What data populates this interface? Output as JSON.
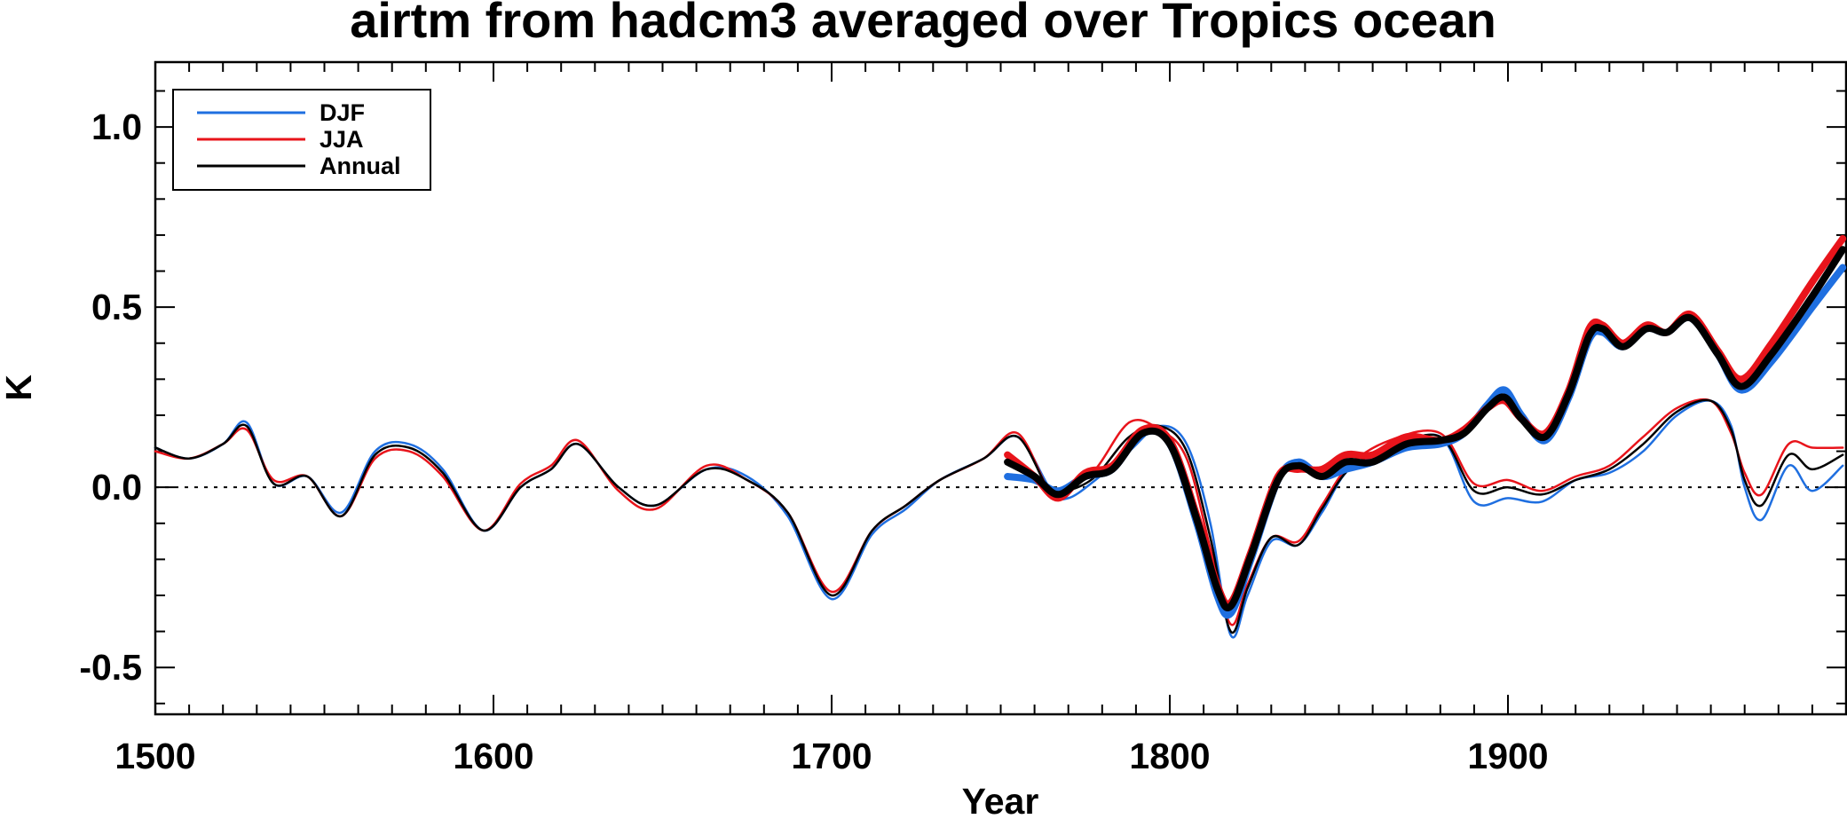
{
  "chart_data": {
    "type": "line",
    "title": "airtm from hadcm3 averaged over Tropics ocean",
    "xlabel": "Year",
    "ylabel": "K",
    "xlim": [
      1500,
      2000
    ],
    "ylim": [
      -0.63,
      1.18
    ],
    "x_ticks": [
      1500,
      1600,
      1700,
      1800,
      1900
    ],
    "x_tick_labels": [
      "1500",
      "1600",
      "1700",
      "1800",
      "1900"
    ],
    "y_ticks": [
      -0.5,
      0.0,
      0.5,
      1.0
    ],
    "y_tick_labels": [
      "-0.5",
      "0.0",
      "0.5",
      "1.0"
    ],
    "zero_line": "dotted",
    "grid": false,
    "legend": {
      "placement": "top-left",
      "entries": [
        "DJF",
        "JJA",
        "Annual"
      ]
    },
    "colors": {
      "DJF": "#1f6fe0",
      "JJA": "#e8141b",
      "Annual": "#000000"
    },
    "series": [
      {
        "name": "DJF",
        "style": "thin",
        "x": [
          1500,
          1510,
          1520,
          1527,
          1535,
          1545,
          1555,
          1565,
          1575,
          1585,
          1597,
          1608,
          1617,
          1625,
          1637,
          1648,
          1663,
          1675,
          1687,
          1700,
          1712,
          1722,
          1732,
          1745,
          1755,
          1765,
          1770,
          1778,
          1788,
          1797,
          1805,
          1812,
          1818,
          1823,
          1830,
          1838,
          1845,
          1853,
          1865,
          1880,
          1890,
          1900,
          1910,
          1920,
          1930,
          1940,
          1950,
          1960,
          1966,
          1970,
          1975,
          1983,
          1990,
          1999
        ],
        "y": [
          0.11,
          0.08,
          0.12,
          0.18,
          0.01,
          0.03,
          -0.07,
          0.1,
          0.12,
          0.05,
          -0.12,
          0.0,
          0.05,
          0.12,
          0.0,
          -0.05,
          0.05,
          0.03,
          -0.08,
          -0.31,
          -0.13,
          -0.06,
          0.02,
          0.08,
          0.14,
          -0.01,
          -0.03,
          0.02,
          0.1,
          0.17,
          0.12,
          -0.1,
          -0.41,
          -0.3,
          -0.15,
          -0.16,
          -0.07,
          0.05,
          0.1,
          0.14,
          -0.04,
          -0.03,
          -0.04,
          0.02,
          0.04,
          0.1,
          0.2,
          0.24,
          0.17,
          0.0,
          -0.09,
          0.06,
          -0.01,
          0.06
        ]
      },
      {
        "name": "JJA",
        "style": "thin",
        "x": [
          1500,
          1510,
          1520,
          1527,
          1535,
          1545,
          1555,
          1565,
          1575,
          1585,
          1597,
          1608,
          1617,
          1625,
          1637,
          1648,
          1663,
          1675,
          1687,
          1700,
          1712,
          1722,
          1732,
          1745,
          1755,
          1765,
          1770,
          1778,
          1788,
          1797,
          1805,
          1812,
          1818,
          1823,
          1830,
          1838,
          1845,
          1853,
          1865,
          1880,
          1890,
          1900,
          1910,
          1920,
          1930,
          1940,
          1950,
          1960,
          1966,
          1970,
          1975,
          1983,
          1990,
          1999
        ],
        "y": [
          0.1,
          0.08,
          0.12,
          0.16,
          0.02,
          0.03,
          -0.08,
          0.08,
          0.1,
          0.03,
          -0.12,
          0.01,
          0.06,
          0.13,
          -0.01,
          -0.06,
          0.06,
          0.02,
          -0.07,
          -0.29,
          -0.12,
          -0.05,
          0.02,
          0.08,
          0.15,
          -0.02,
          0.0,
          0.05,
          0.18,
          0.16,
          0.08,
          -0.17,
          -0.38,
          -0.27,
          -0.14,
          -0.15,
          -0.05,
          0.06,
          0.13,
          0.15,
          0.01,
          0.02,
          -0.01,
          0.03,
          0.06,
          0.14,
          0.22,
          0.24,
          0.15,
          0.04,
          -0.02,
          0.12,
          0.11,
          0.11
        ]
      },
      {
        "name": "Annual",
        "style": "thin",
        "x": [
          1500,
          1510,
          1520,
          1527,
          1535,
          1545,
          1555,
          1565,
          1575,
          1585,
          1597,
          1608,
          1617,
          1625,
          1637,
          1648,
          1663,
          1675,
          1687,
          1700,
          1712,
          1722,
          1732,
          1745,
          1755,
          1765,
          1770,
          1778,
          1788,
          1797,
          1805,
          1812,
          1818,
          1823,
          1830,
          1838,
          1845,
          1853,
          1865,
          1880,
          1890,
          1900,
          1910,
          1920,
          1930,
          1940,
          1950,
          1960,
          1966,
          1970,
          1975,
          1983,
          1990,
          1999
        ],
        "y": [
          0.11,
          0.08,
          0.12,
          0.17,
          0.01,
          0.03,
          -0.08,
          0.09,
          0.11,
          0.04,
          -0.12,
          0.0,
          0.05,
          0.12,
          0.0,
          -0.05,
          0.05,
          0.02,
          -0.07,
          -0.3,
          -0.12,
          -0.05,
          0.02,
          0.08,
          0.14,
          -0.02,
          -0.01,
          0.03,
          0.14,
          0.17,
          0.1,
          -0.14,
          -0.4,
          -0.28,
          -0.14,
          -0.16,
          -0.06,
          0.05,
          0.11,
          0.14,
          -0.01,
          0.0,
          -0.02,
          0.02,
          0.05,
          0.12,
          0.21,
          0.24,
          0.16,
          0.02,
          -0.05,
          0.09,
          0.05,
          0.09
        ]
      },
      {
        "name": "DJF",
        "style": "thick",
        "x": [
          1752,
          1760,
          1767,
          1775,
          1783,
          1792,
          1800,
          1808,
          1814,
          1818,
          1824,
          1832,
          1838,
          1845,
          1852,
          1860,
          1870,
          1880,
          1887,
          1894,
          1899,
          1904,
          1911,
          1918,
          1924,
          1928,
          1934,
          1941,
          1947,
          1954,
          1962,
          1969,
          1978,
          1990,
          1999
        ],
        "y": [
          0.03,
          0.02,
          -0.01,
          0.03,
          0.05,
          0.15,
          0.12,
          -0.1,
          -0.3,
          -0.35,
          -0.2,
          0.02,
          0.07,
          0.03,
          0.05,
          0.07,
          0.11,
          0.12,
          0.15,
          0.23,
          0.27,
          0.2,
          0.13,
          0.25,
          0.41,
          0.43,
          0.39,
          0.44,
          0.43,
          0.47,
          0.37,
          0.27,
          0.35,
          0.5,
          0.61
        ]
      },
      {
        "name": "JJA",
        "style": "thick",
        "x": [
          1752,
          1760,
          1767,
          1775,
          1783,
          1792,
          1800,
          1808,
          1814,
          1818,
          1824,
          1832,
          1838,
          1845,
          1852,
          1860,
          1870,
          1880,
          1887,
          1894,
          1899,
          1904,
          1911,
          1918,
          1924,
          1928,
          1934,
          1941,
          1947,
          1954,
          1962,
          1969,
          1978,
          1990,
          1999
        ],
        "y": [
          0.09,
          0.03,
          -0.03,
          0.04,
          0.06,
          0.16,
          0.13,
          -0.08,
          -0.27,
          -0.32,
          -0.18,
          0.03,
          0.05,
          0.05,
          0.09,
          0.09,
          0.14,
          0.13,
          0.16,
          0.22,
          0.24,
          0.19,
          0.15,
          0.27,
          0.44,
          0.45,
          0.4,
          0.45,
          0.43,
          0.48,
          0.38,
          0.3,
          0.4,
          0.57,
          0.69
        ]
      },
      {
        "name": "Annual",
        "style": "thick",
        "x": [
          1752,
          1760,
          1767,
          1775,
          1783,
          1792,
          1800,
          1808,
          1814,
          1818,
          1824,
          1832,
          1838,
          1845,
          1852,
          1860,
          1870,
          1880,
          1887,
          1894,
          1899,
          1904,
          1911,
          1918,
          1924,
          1928,
          1934,
          1941,
          1947,
          1954,
          1962,
          1969,
          1978,
          1990,
          1999
        ],
        "y": [
          0.07,
          0.03,
          -0.02,
          0.03,
          0.05,
          0.15,
          0.12,
          -0.09,
          -0.28,
          -0.33,
          -0.19,
          0.02,
          0.06,
          0.03,
          0.07,
          0.07,
          0.12,
          0.13,
          0.15,
          0.22,
          0.25,
          0.19,
          0.14,
          0.26,
          0.42,
          0.44,
          0.39,
          0.44,
          0.43,
          0.47,
          0.37,
          0.28,
          0.37,
          0.53,
          0.66
        ]
      }
    ]
  }
}
